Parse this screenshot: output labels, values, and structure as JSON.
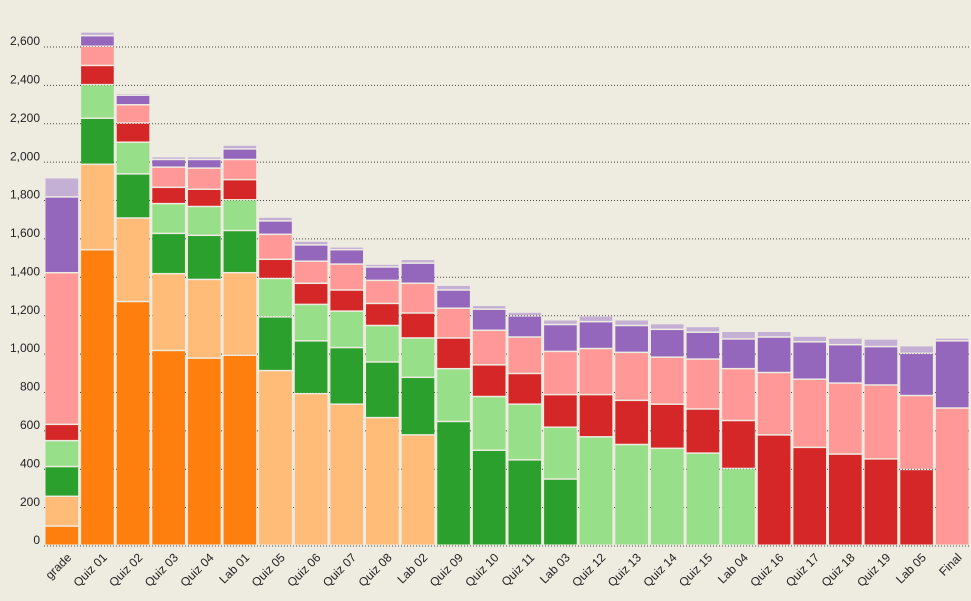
{
  "chart_data": {
    "type": "stacked_bar",
    "categories": [
      "grade",
      "Quiz 01",
      "Quiz 02",
      "Quiz 03",
      "Quiz 04",
      "Lab 01",
      "Quiz 05",
      "Quiz 06",
      "Quiz 07",
      "Quiz 08",
      "Lab 02",
      "Quiz 09",
      "Quiz 10",
      "Quiz 11",
      "Lab 03",
      "Quiz 12",
      "Quiz 13",
      "Quiz 14",
      "Quiz 15",
      "Lab 04",
      "Quiz 16",
      "Quiz 17",
      "Quiz 18",
      "Quiz 19",
      "Lab 05",
      "Final"
    ],
    "series": [
      {
        "color": "#ff7f0e",
        "values": [
          100,
          1540,
          1270,
          1015,
          975,
          990,
          0,
          0,
          0,
          0,
          0,
          0,
          0,
          0,
          0,
          0,
          0,
          0,
          0,
          0,
          0,
          0,
          0,
          0,
          0,
          0
        ]
      },
      {
        "color": "#ffbb78",
        "values": [
          155,
          445,
          435,
          400,
          410,
          430,
          910,
          790,
          735,
          665,
          575,
          0,
          0,
          0,
          0,
          0,
          0,
          0,
          0,
          0,
          0,
          0,
          0,
          0,
          0,
          0
        ]
      },
      {
        "color": "#2ca02c",
        "values": [
          155,
          240,
          230,
          210,
          230,
          220,
          280,
          275,
          295,
          290,
          300,
          645,
          495,
          445,
          345,
          0,
          0,
          0,
          0,
          0,
          0,
          0,
          0,
          0,
          0,
          0
        ]
      },
      {
        "color": "#98df8a",
        "values": [
          135,
          175,
          165,
          155,
          150,
          160,
          200,
          190,
          190,
          190,
          205,
          275,
          280,
          290,
          270,
          565,
          525,
          505,
          480,
          400,
          0,
          0,
          0,
          0,
          0,
          0
        ]
      },
      {
        "color": "#d62728",
        "values": [
          85,
          100,
          100,
          85,
          90,
          105,
          100,
          110,
          110,
          115,
          130,
          160,
          165,
          160,
          170,
          220,
          230,
          230,
          230,
          250,
          575,
          510,
          475,
          450,
          395,
          0
        ]
      },
      {
        "color": "#ff9896",
        "values": [
          790,
          100,
          95,
          105,
          110,
          105,
          130,
          115,
          135,
          120,
          155,
          155,
          180,
          190,
          225,
          240,
          250,
          245,
          260,
          270,
          325,
          355,
          370,
          385,
          385,
          715
        ]
      },
      {
        "color": "#9467bd",
        "values": [
          395,
          55,
          50,
          40,
          45,
          55,
          70,
          85,
          75,
          70,
          105,
          95,
          110,
          110,
          140,
          140,
          140,
          145,
          140,
          155,
          185,
          195,
          200,
          200,
          220,
          350
        ]
      },
      {
        "color": "#c5b0d5",
        "values": [
          100,
          20,
          10,
          15,
          15,
          20,
          20,
          20,
          15,
          15,
          20,
          25,
          20,
          20,
          25,
          30,
          30,
          30,
          30,
          40,
          30,
          30,
          35,
          40,
          40,
          15
        ]
      }
    ],
    "ylim": [
      0,
      2600
    ],
    "yticks": [
      0,
      200,
      400,
      600,
      800,
      {
        "value": 1000,
        "label": "1,000"
      },
      {
        "value": 1200,
        "label": "1,200"
      },
      {
        "value": 1400,
        "label": "1,400"
      },
      {
        "value": 1600,
        "label": "1,600"
      },
      {
        "value": 1800,
        "label": "1,800"
      },
      {
        "value": 2000,
        "label": "2,000"
      },
      {
        "value": 2200,
        "label": "2,200"
      },
      {
        "value": 2400,
        "label": "2,400"
      },
      {
        "value": 2600,
        "label": "2,600"
      }
    ],
    "grid": true
  }
}
